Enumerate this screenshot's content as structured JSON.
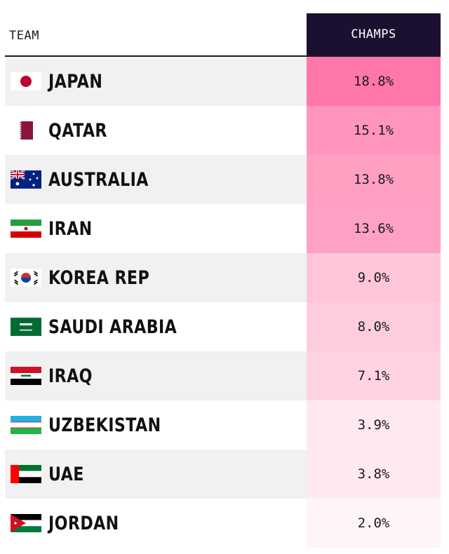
{
  "header": {
    "team_label": "TEAM",
    "champs_label": "CHAMPS"
  },
  "colors": {
    "header_bg": "#1c1030",
    "heat_max": "#ff77aa",
    "heat_min": "#ffffff"
  },
  "chart_data": {
    "type": "table",
    "columns": [
      "TEAM",
      "CHAMPS"
    ],
    "rows": [
      {
        "team": "JAPAN",
        "champs": "18.8%",
        "value": 18.8,
        "flag": "japan-flag-icon"
      },
      {
        "team": "QATAR",
        "champs": "15.1%",
        "value": 15.1,
        "flag": "qatar-flag-icon"
      },
      {
        "team": "AUSTRALIA",
        "champs": "13.8%",
        "value": 13.8,
        "flag": "australia-flag-icon"
      },
      {
        "team": "IRAN",
        "champs": "13.6%",
        "value": 13.6,
        "flag": "iran-flag-icon"
      },
      {
        "team": "KOREA REP",
        "champs": "9.0%",
        "value": 9.0,
        "flag": "korea-flag-icon"
      },
      {
        "team": "SAUDI ARABIA",
        "champs": "8.0%",
        "value": 8.0,
        "flag": "saudi-arabia-flag-icon"
      },
      {
        "team": "IRAQ",
        "champs": "7.1%",
        "value": 7.1,
        "flag": "iraq-flag-icon"
      },
      {
        "team": "UZBEKISTAN",
        "champs": "3.9%",
        "value": 3.9,
        "flag": "uzbekistan-flag-icon"
      },
      {
        "team": "UAE",
        "champs": "3.8%",
        "value": 3.8,
        "flag": "uae-flag-icon"
      },
      {
        "team": "JORDAN",
        "champs": "2.0%",
        "value": 2.0,
        "flag": "jordan-flag-icon"
      }
    ]
  }
}
